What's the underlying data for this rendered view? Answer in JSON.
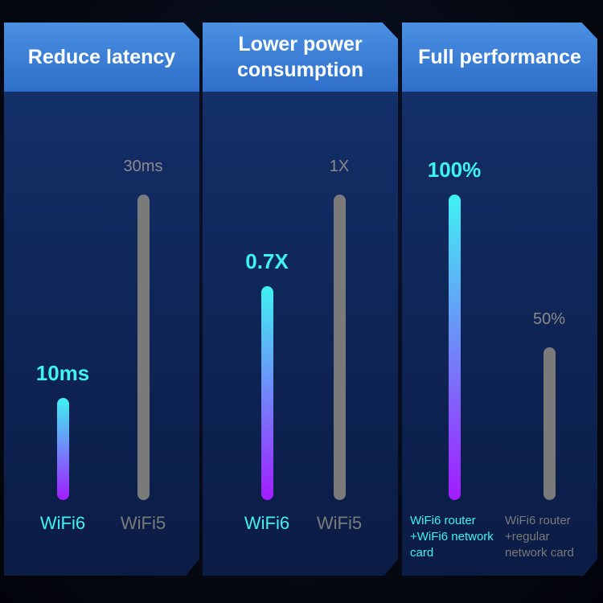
{
  "chart_data": [
    {
      "type": "bar",
      "title": "Reduce latency",
      "categories": [
        "WiFi6",
        "WiFi5"
      ],
      "values": [
        10,
        30
      ],
      "value_labels": [
        "10ms",
        "30ms"
      ],
      "ylim": [
        0,
        30
      ],
      "colors": [
        "#3ff2f2",
        "#7a7a7a"
      ],
      "highlight_gradient": [
        "#3ff2f2",
        "#a21cff"
      ]
    },
    {
      "type": "bar",
      "title": "Lower power consumption",
      "categories": [
        "WiFi6",
        "WiFi5"
      ],
      "values": [
        0.7,
        1
      ],
      "value_labels": [
        "0.7X",
        "1X"
      ],
      "ylim": [
        0,
        1
      ],
      "colors": [
        "#3ff2f2",
        "#7a7a7a"
      ],
      "highlight_gradient": [
        "#3ff2f2",
        "#a21cff"
      ]
    },
    {
      "type": "bar",
      "title": "Full performance",
      "categories": [
        "WiFi6 router\n+WiFi6 network\ncard",
        "WiFi6 router\n+regular\nnetwork card"
      ],
      "values": [
        100,
        50
      ],
      "value_labels": [
        "100%",
        "50%"
      ],
      "ylim": [
        0,
        100
      ],
      "colors": [
        "#3ff2f2",
        "#7a7a7a"
      ],
      "highlight_gradient": [
        "#3ff2f2",
        "#a21cff"
      ]
    }
  ]
}
